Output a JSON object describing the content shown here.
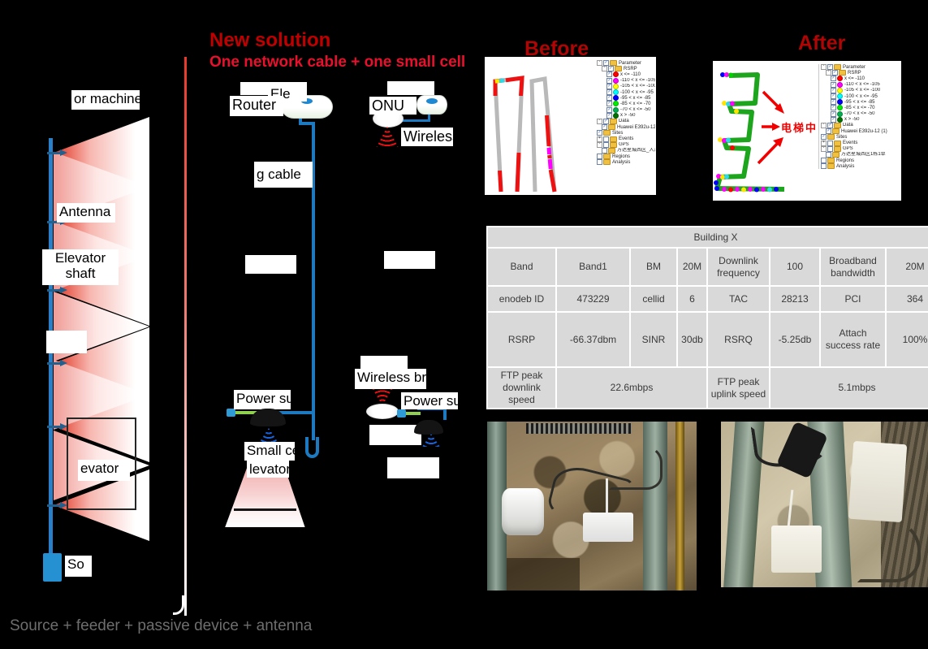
{
  "slide": {
    "title": "New solution",
    "subtitle": "One network cable + one small cell",
    "before_title": "Before",
    "after_title": "After",
    "caption": "Source + feeder + passive device + antenna"
  },
  "old_solution": {
    "machine_room_label": "or machine",
    "antenna_label": "Antenna",
    "shaft_label_line1": "Elevator",
    "shaft_label_line2": "shaft",
    "car_label": "evator",
    "source_label": "So"
  },
  "new_solution": {
    "machine_room_label": "Ele",
    "router_label": "Router",
    "cable_label": "g cable",
    "power_label": "Power sup",
    "small_cell_label": "Small cel",
    "elevator_label": "levator",
    "onu_label": "ONU",
    "wireless_label": "Wireless",
    "bridge_label": "Wireless bri",
    "bridge_power_label": "Power sup"
  },
  "annotations": {
    "in_elevator": "电梯中"
  },
  "legend": {
    "parameter": "Parameter",
    "rsrp": "RSRP",
    "bins": [
      {
        "color": "#ff0000",
        "label": "x <= -110"
      },
      {
        "color": "#ff00ff",
        "label": "-110 < x <= -105"
      },
      {
        "color": "#ffff00",
        "label": "-105 < x <= -100"
      },
      {
        "color": "#00ffff",
        "label": "-100 < x <= -95"
      },
      {
        "color": "#0000ff",
        "label": "-95 < x <= -85"
      },
      {
        "color": "#00ee00",
        "label": "-85 < x <= -70"
      },
      {
        "color": "#00b050",
        "label": "-70 < x <= -50"
      },
      {
        "color": "#007000",
        "label": "x > -50"
      }
    ],
    "data": "Data",
    "device": "Huawei E392u-12 (1)",
    "sites": "Sites",
    "events": "Events",
    "gps": "GPS",
    "gps_child_before": "万达星城西区_入凡",
    "gps_child_after": "万达星城西区1栋1单",
    "regions": "Regions",
    "analysis": "Analysis"
  },
  "table": {
    "title": "Building X",
    "rows": [
      [
        "Band",
        "Band1",
        "BM",
        "20M",
        "Downlink frequency",
        "100",
        "Broadband bandwidth",
        "20M"
      ],
      [
        "enodeb ID",
        "473229",
        "cellid",
        "6",
        "TAC",
        "28213",
        "PCI",
        "364"
      ],
      [
        "RSRP",
        "-66.37dbm",
        "SINR",
        "30db",
        "RSRQ",
        "-5.25db",
        "Attach success rate",
        "100%"
      ],
      [
        "FTP peak downlink speed",
        "22.6mbps",
        "FTP peak uplink speed",
        "5.1mbps"
      ]
    ]
  },
  "colors": {
    "title_red": "#c00000",
    "subtitle_red": "#e8112d",
    "cable_blue": "#1e7ac0",
    "power_green": "#8fd14f",
    "beam_red": "#e0301e"
  }
}
